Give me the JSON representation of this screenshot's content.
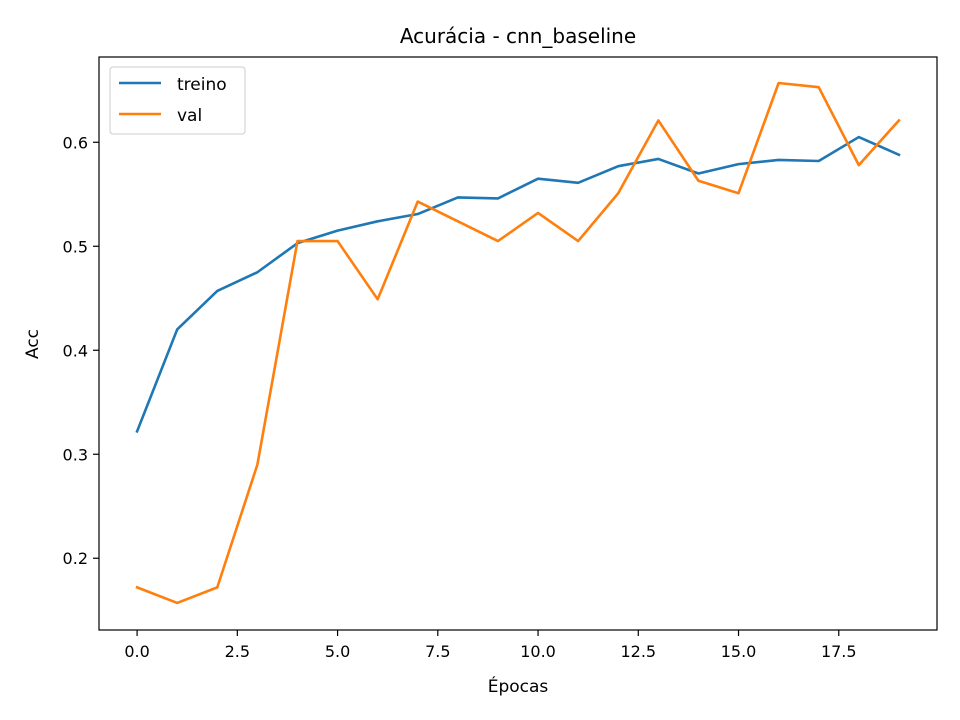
{
  "chart_data": {
    "type": "line",
    "title": "Acurácia - cnn_baseline",
    "xlabel": "Épocas",
    "ylabel": "Acc",
    "xlim": [
      -0.95,
      19.95
    ],
    "ylim": [
      0.131,
      0.682
    ],
    "xticks": [
      0.0,
      2.5,
      5.0,
      7.5,
      10.0,
      12.5,
      15.0,
      17.5
    ],
    "xtick_labels": [
      "0.0",
      "2.5",
      "5.0",
      "7.5",
      "10.0",
      "12.5",
      "15.0",
      "17.5"
    ],
    "yticks": [
      0.2,
      0.3,
      0.4,
      0.5,
      0.6
    ],
    "ytick_labels": [
      "0.2",
      "0.3",
      "0.4",
      "0.5",
      "0.6"
    ],
    "grid": false,
    "legend_position": "top-left",
    "x": [
      0,
      1,
      2,
      3,
      4,
      5,
      6,
      7,
      8,
      9,
      10,
      11,
      12,
      13,
      14,
      15,
      16,
      17,
      18,
      19
    ],
    "series": [
      {
        "name": "treino",
        "color": "#1f77b4",
        "values": [
          0.322,
          0.42,
          0.457,
          0.475,
          0.503,
          0.515,
          0.524,
          0.531,
          0.547,
          0.546,
          0.565,
          0.561,
          0.577,
          0.584,
          0.57,
          0.579,
          0.583,
          0.582,
          0.605,
          0.588
        ]
      },
      {
        "name": "val",
        "color": "#ff7f0e",
        "values": [
          0.172,
          0.157,
          0.172,
          0.29,
          0.505,
          0.505,
          0.449,
          0.543,
          0.524,
          0.505,
          0.532,
          0.505,
          0.551,
          0.621,
          0.563,
          0.551,
          0.657,
          0.653,
          0.578,
          0.621
        ]
      }
    ]
  }
}
